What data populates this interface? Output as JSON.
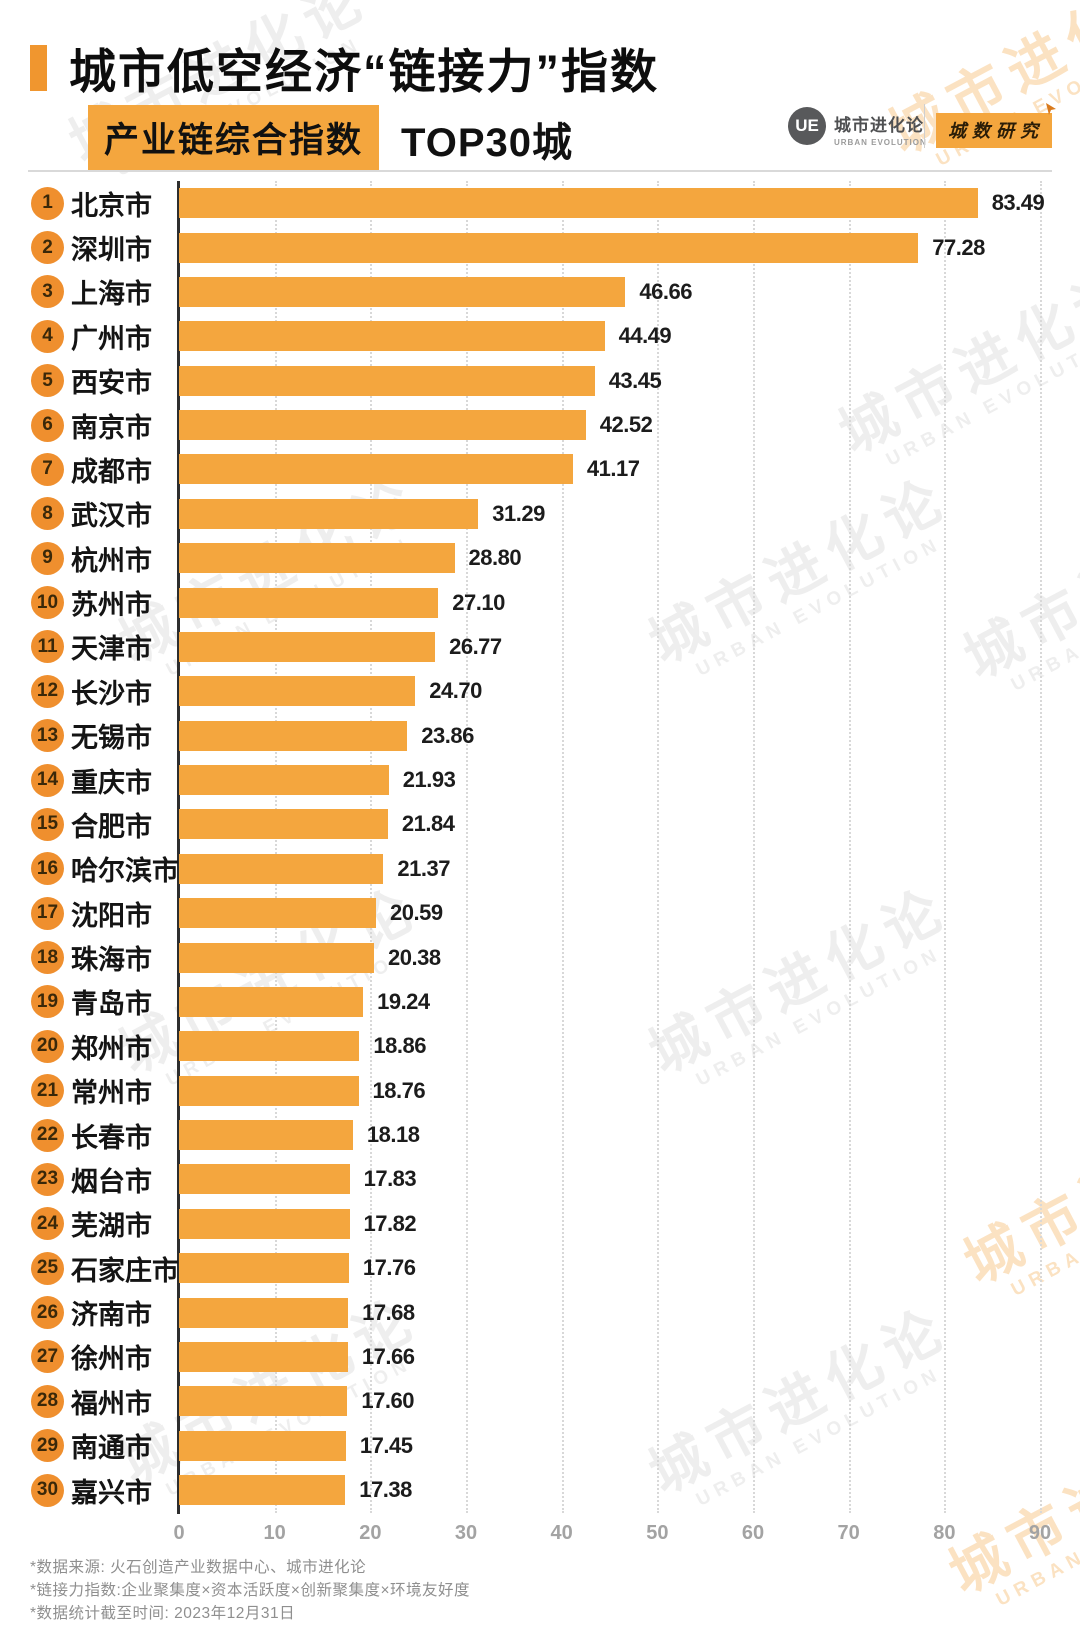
{
  "header": {
    "title": "城市低空经济“链接力”指数",
    "subtitle_badge": "产业链综合指数",
    "subtitle_rest": "TOP30城",
    "logo": {
      "ue_text": "UE",
      "brand_cn": "城市进化论",
      "brand_en": "URBAN EVOLUTION",
      "research_badge": "城数研究"
    }
  },
  "chart_data": {
    "type": "bar",
    "orientation": "horizontal",
    "title": "产业链综合指数 TOP30城",
    "xlabel": "",
    "ylabel": "",
    "xlim": [
      0,
      90
    ],
    "x_ticks": [
      "0",
      "10",
      "20",
      "30",
      "40",
      "50",
      "60",
      "70",
      "80",
      "90"
    ],
    "grid": "vertical-dotted",
    "legend": "none",
    "bar_color": "#f4a63e",
    "badge_color": "#ef8f2e",
    "categories": [
      "北京市",
      "深圳市",
      "上海市",
      "广州市",
      "西安市",
      "南京市",
      "成都市",
      "武汉市",
      "杭州市",
      "苏州市",
      "天津市",
      "长沙市",
      "无锡市",
      "重庆市",
      "合肥市",
      "哈尔滨市",
      "沈阳市",
      "珠海市",
      "青岛市",
      "郑州市",
      "常州市",
      "长春市",
      "烟台市",
      "芜湖市",
      "石家庄市",
      "济南市",
      "徐州市",
      "福州市",
      "南通市",
      "嘉兴市"
    ],
    "values": [
      83.49,
      77.28,
      46.66,
      44.49,
      43.45,
      42.52,
      41.17,
      31.29,
      28.8,
      27.1,
      26.77,
      24.7,
      23.86,
      21.93,
      21.84,
      21.37,
      20.59,
      20.38,
      19.24,
      18.86,
      18.76,
      18.18,
      17.83,
      17.82,
      17.76,
      17.68,
      17.66,
      17.6,
      17.45,
      17.38
    ],
    "rows": [
      {
        "rank": "1",
        "city": "北京市",
        "value": "83.49"
      },
      {
        "rank": "2",
        "city": "深圳市",
        "value": "77.28"
      },
      {
        "rank": "3",
        "city": "上海市",
        "value": "46.66"
      },
      {
        "rank": "4",
        "city": "广州市",
        "value": "44.49"
      },
      {
        "rank": "5",
        "city": "西安市",
        "value": "43.45"
      },
      {
        "rank": "6",
        "city": "南京市",
        "value": "42.52"
      },
      {
        "rank": "7",
        "city": "成都市",
        "value": "41.17"
      },
      {
        "rank": "8",
        "city": "武汉市",
        "value": "31.29"
      },
      {
        "rank": "9",
        "city": "杭州市",
        "value": "28.80"
      },
      {
        "rank": "10",
        "city": "苏州市",
        "value": "27.10"
      },
      {
        "rank": "11",
        "city": "天津市",
        "value": "26.77"
      },
      {
        "rank": "12",
        "city": "长沙市",
        "value": "24.70"
      },
      {
        "rank": "13",
        "city": "无锡市",
        "value": "23.86"
      },
      {
        "rank": "14",
        "city": "重庆市",
        "value": "21.93"
      },
      {
        "rank": "15",
        "city": "合肥市",
        "value": "21.84"
      },
      {
        "rank": "16",
        "city": "哈尔滨市",
        "value": "21.37"
      },
      {
        "rank": "17",
        "city": "沈阳市",
        "value": "20.59"
      },
      {
        "rank": "18",
        "city": "珠海市",
        "value": "20.38"
      },
      {
        "rank": "19",
        "city": "青岛市",
        "value": "19.24"
      },
      {
        "rank": "20",
        "city": "郑州市",
        "value": "18.86"
      },
      {
        "rank": "21",
        "city": "常州市",
        "value": "18.76"
      },
      {
        "rank": "22",
        "city": "长春市",
        "value": "18.18"
      },
      {
        "rank": "23",
        "city": "烟台市",
        "value": "17.83"
      },
      {
        "rank": "24",
        "city": "芜湖市",
        "value": "17.82"
      },
      {
        "rank": "25",
        "city": "石家庄市",
        "value": "17.76"
      },
      {
        "rank": "26",
        "city": "济南市",
        "value": "17.68"
      },
      {
        "rank": "27",
        "city": "徐州市",
        "value": "17.66"
      },
      {
        "rank": "28",
        "city": "福州市",
        "value": "17.60"
      },
      {
        "rank": "29",
        "city": "南通市",
        "value": "17.45"
      },
      {
        "rank": "30",
        "city": "嘉兴市",
        "value": "17.38"
      }
    ]
  },
  "watermark": {
    "cn": "城市进化论",
    "en": "URBAN EVOLUTION"
  },
  "footer": {
    "notes": [
      "*数据来源: 火石创造产业数据中心、城市进化论",
      "*链接力指数:企业聚集度×资本活跃度×创新聚集度×环境友好度",
      "*数据统计截至时间: 2023年12月31日"
    ]
  }
}
